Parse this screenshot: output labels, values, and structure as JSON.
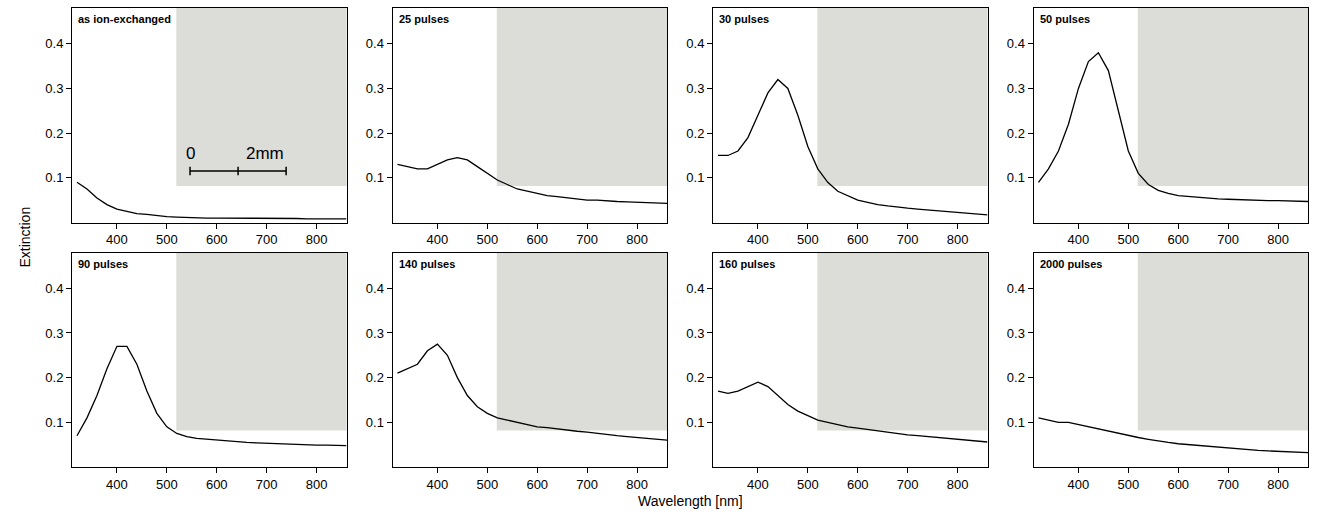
{
  "x_label": "Wavelength [nm]",
  "y_label": "Extinction",
  "chart_data": [
    {
      "type": "line",
      "title": "as ion-exchanged",
      "color": "#000000",
      "annotations": [
        "0",
        "2mm"
      ],
      "x": [
        320,
        340,
        360,
        380,
        400,
        420,
        440,
        460,
        480,
        500,
        520,
        540,
        560,
        580,
        600,
        620,
        640,
        660,
        680,
        700,
        720,
        740,
        760,
        780,
        800,
        820,
        840,
        860
      ],
      "values": [
        0.09,
        0.075,
        0.055,
        0.04,
        0.03,
        0.025,
        0.02,
        0.018,
        0.015,
        0.013,
        0.012,
        0.011,
        0.011,
        0.01,
        0.01,
        0.01,
        0.01,
        0.01,
        0.009,
        0.009,
        0.009,
        0.009,
        0.009,
        0.008,
        0.008,
        0.008,
        0.008,
        0.008
      ],
      "xlim": [
        310,
        860
      ],
      "ylim": [
        0,
        0.48
      ],
      "xticks": [
        400,
        500,
        600,
        700,
        800
      ],
      "yticks": [
        0.1,
        0.2,
        0.3,
        0.4
      ]
    },
    {
      "type": "line",
      "title": "25 pulses",
      "color": "#000000",
      "x": [
        320,
        340,
        360,
        380,
        400,
        420,
        440,
        460,
        480,
        500,
        520,
        540,
        560,
        580,
        600,
        620,
        640,
        660,
        680,
        700,
        720,
        740,
        760,
        780,
        800,
        820,
        840,
        860
      ],
      "values": [
        0.13,
        0.125,
        0.12,
        0.12,
        0.13,
        0.14,
        0.145,
        0.14,
        0.125,
        0.11,
        0.095,
        0.085,
        0.075,
        0.07,
        0.065,
        0.06,
        0.058,
        0.055,
        0.053,
        0.05,
        0.05,
        0.048,
        0.047,
        0.046,
        0.045,
        0.045,
        0.044,
        0.043
      ],
      "xlim": [
        310,
        860
      ],
      "ylim": [
        0,
        0.48
      ],
      "xticks": [
        400,
        500,
        600,
        700,
        800
      ],
      "yticks": [
        0.1,
        0.2,
        0.3,
        0.4
      ]
    },
    {
      "type": "line",
      "title": "30 pulses",
      "color": "#000000",
      "x": [
        320,
        340,
        360,
        380,
        400,
        420,
        440,
        460,
        480,
        500,
        520,
        540,
        560,
        580,
        600,
        620,
        640,
        660,
        680,
        700,
        720,
        740,
        760,
        780,
        800,
        820,
        840,
        860
      ],
      "values": [
        0.15,
        0.15,
        0.16,
        0.19,
        0.24,
        0.29,
        0.32,
        0.3,
        0.24,
        0.17,
        0.12,
        0.09,
        0.07,
        0.06,
        0.05,
        0.045,
        0.04,
        0.037,
        0.034,
        0.032,
        0.03,
        0.028,
        0.026,
        0.024,
        0.022,
        0.02,
        0.018,
        0.017
      ],
      "xlim": [
        310,
        860
      ],
      "ylim": [
        0,
        0.48
      ],
      "xticks": [
        400,
        500,
        600,
        700,
        800
      ],
      "yticks": [
        0.1,
        0.2,
        0.3,
        0.4
      ]
    },
    {
      "type": "line",
      "title": "50 pulses",
      "color": "#000000",
      "x": [
        320,
        340,
        360,
        380,
        400,
        420,
        440,
        460,
        480,
        500,
        520,
        540,
        560,
        580,
        600,
        620,
        640,
        660,
        680,
        700,
        720,
        740,
        760,
        780,
        800,
        820,
        840,
        860
      ],
      "values": [
        0.09,
        0.12,
        0.16,
        0.22,
        0.3,
        0.36,
        0.38,
        0.34,
        0.25,
        0.16,
        0.11,
        0.085,
        0.072,
        0.065,
        0.06,
        0.058,
        0.056,
        0.054,
        0.053,
        0.052,
        0.051,
        0.05,
        0.05,
        0.049,
        0.049,
        0.048,
        0.048,
        0.047
      ],
      "xlim": [
        310,
        860
      ],
      "ylim": [
        0,
        0.48
      ],
      "xticks": [
        400,
        500,
        600,
        700,
        800
      ],
      "yticks": [
        0.1,
        0.2,
        0.3,
        0.4
      ]
    },
    {
      "type": "line",
      "title": "90 pulses",
      "color": "#000000",
      "x": [
        320,
        340,
        360,
        380,
        400,
        420,
        440,
        460,
        480,
        500,
        520,
        540,
        560,
        580,
        600,
        620,
        640,
        660,
        680,
        700,
        720,
        740,
        760,
        780,
        800,
        820,
        840,
        860
      ],
      "values": [
        0.07,
        0.11,
        0.16,
        0.22,
        0.27,
        0.27,
        0.23,
        0.17,
        0.12,
        0.09,
        0.075,
        0.068,
        0.064,
        0.062,
        0.06,
        0.058,
        0.056,
        0.055,
        0.054,
        0.053,
        0.052,
        0.051,
        0.05,
        0.05,
        0.049,
        0.049,
        0.048,
        0.048
      ],
      "xlim": [
        310,
        860
      ],
      "ylim": [
        0,
        0.48
      ],
      "xticks": [
        400,
        500,
        600,
        700,
        800
      ],
      "yticks": [
        0.1,
        0.2,
        0.3,
        0.4
      ]
    },
    {
      "type": "line",
      "title": "140 pulses",
      "color": "#000000",
      "x": [
        320,
        340,
        360,
        380,
        400,
        420,
        440,
        460,
        480,
        500,
        520,
        540,
        560,
        580,
        600,
        620,
        640,
        660,
        680,
        700,
        720,
        740,
        760,
        780,
        800,
        820,
        840,
        860
      ],
      "values": [
        0.21,
        0.22,
        0.23,
        0.26,
        0.275,
        0.25,
        0.2,
        0.16,
        0.135,
        0.12,
        0.11,
        0.105,
        0.1,
        0.095,
        0.09,
        0.088,
        0.085,
        0.082,
        0.08,
        0.078,
        0.075,
        0.072,
        0.07,
        0.068,
        0.066,
        0.064,
        0.062,
        0.06
      ],
      "xlim": [
        310,
        860
      ],
      "ylim": [
        0,
        0.48
      ],
      "xticks": [
        400,
        500,
        600,
        700,
        800
      ],
      "yticks": [
        0.1,
        0.2,
        0.3,
        0.4
      ]
    },
    {
      "type": "line",
      "title": "160 pulses",
      "color": "#000000",
      "x": [
        320,
        340,
        360,
        380,
        400,
        420,
        440,
        460,
        480,
        500,
        520,
        540,
        560,
        580,
        600,
        620,
        640,
        660,
        680,
        700,
        720,
        740,
        760,
        780,
        800,
        820,
        840,
        860
      ],
      "values": [
        0.17,
        0.165,
        0.17,
        0.18,
        0.19,
        0.18,
        0.16,
        0.14,
        0.125,
        0.115,
        0.105,
        0.1,
        0.095,
        0.09,
        0.087,
        0.084,
        0.08,
        0.077,
        0.075,
        0.072,
        0.07,
        0.068,
        0.066,
        0.064,
        0.062,
        0.06,
        0.058,
        0.056
      ],
      "xlim": [
        310,
        860
      ],
      "ylim": [
        0,
        0.48
      ],
      "xticks": [
        400,
        500,
        600,
        700,
        800
      ],
      "yticks": [
        0.1,
        0.2,
        0.3,
        0.4
      ]
    },
    {
      "type": "line",
      "title": "2000 pulses",
      "color": "#000000",
      "x": [
        320,
        340,
        360,
        380,
        400,
        420,
        440,
        460,
        480,
        500,
        520,
        540,
        560,
        580,
        600,
        620,
        640,
        660,
        680,
        700,
        720,
        740,
        760,
        780,
        800,
        820,
        840,
        860
      ],
      "values": [
        0.11,
        0.105,
        0.1,
        0.1,
        0.095,
        0.09,
        0.085,
        0.08,
        0.075,
        0.07,
        0.066,
        0.062,
        0.058,
        0.055,
        0.052,
        0.05,
        0.048,
        0.046,
        0.044,
        0.042,
        0.04,
        0.039,
        0.037,
        0.036,
        0.035,
        0.034,
        0.033,
        0.032
      ],
      "xlim": [
        310,
        860
      ],
      "ylim": [
        0,
        0.48
      ],
      "xticks": [
        400,
        500,
        600,
        700,
        800
      ],
      "yticks": [
        0.1,
        0.2,
        0.3,
        0.4
      ]
    }
  ]
}
